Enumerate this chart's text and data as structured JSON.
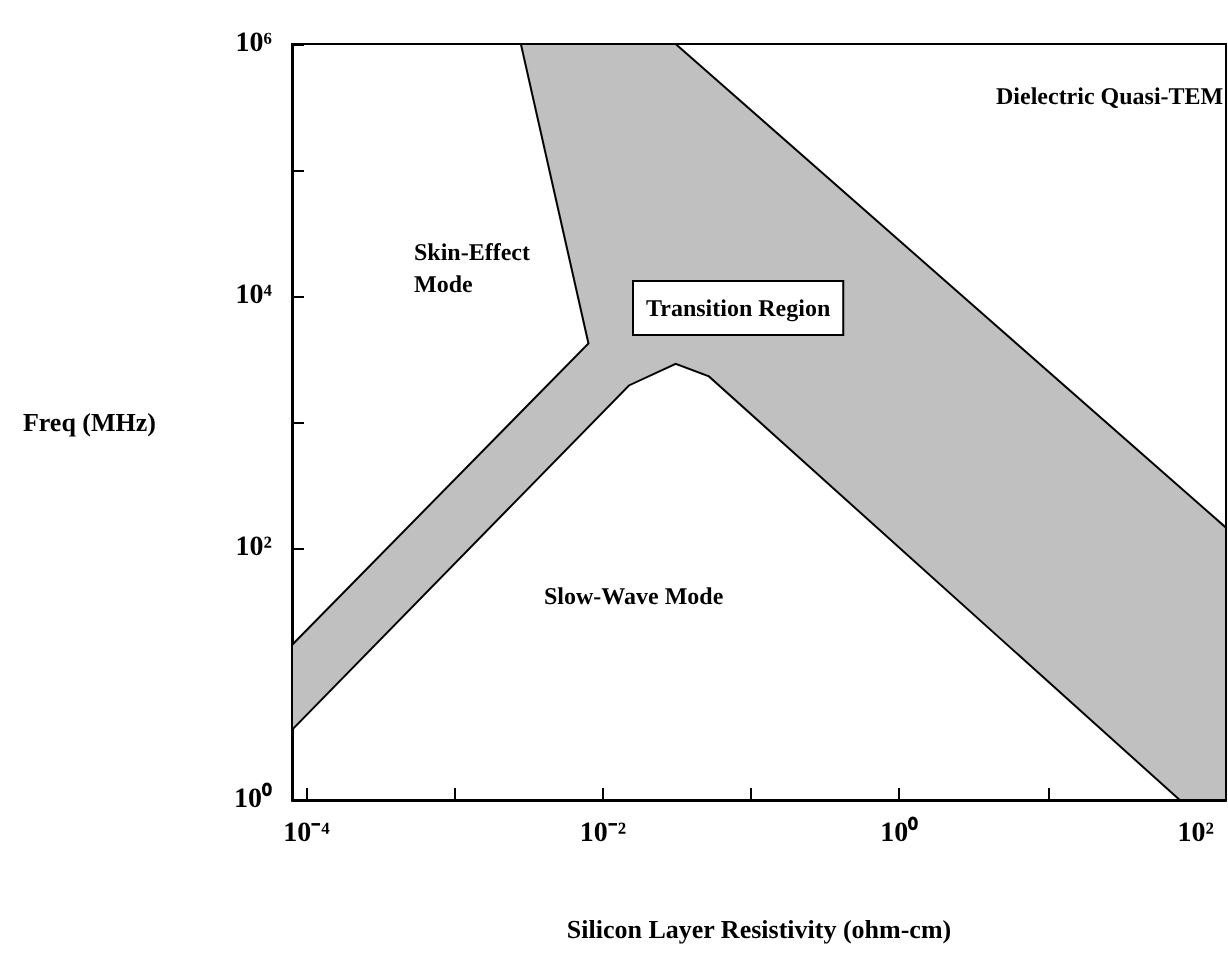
{
  "chart_data": {
    "type": "area",
    "xlabel": "Silicon Layer Resistivity (ohm-cm)",
    "ylabel": "Freq (MHz)",
    "log": "xy",
    "grid": false,
    "xlim": [
      8e-05,
      160
    ],
    "ylim": [
      1,
      1000000
    ],
    "xticks": [
      {
        "value": 0.0001,
        "label": "10⁻⁴"
      },
      {
        "value": 0.001,
        "label": null
      },
      {
        "value": 0.01,
        "label": "10⁻²"
      },
      {
        "value": 0.1,
        "label": null
      },
      {
        "value": 1,
        "label": "10⁰"
      },
      {
        "value": 10,
        "label": null
      },
      {
        "value": 100,
        "label": "10²"
      }
    ],
    "yticks": [
      {
        "value": 1,
        "label": "10⁰"
      },
      {
        "value": 10,
        "label": null
      },
      {
        "value": 100,
        "label": "10²"
      },
      {
        "value": 1000,
        "label": null
      },
      {
        "value": 10000,
        "label": "10⁴"
      },
      {
        "value": 100000,
        "label": null
      },
      {
        "value": 1000000,
        "label": "10⁶"
      }
    ],
    "series": [
      {
        "color": "#c0c0c0",
        "x": [
          8e-05,
          0.008,
          0.0028,
          0.031,
          160,
          160,
          78,
          0.052,
          0.031,
          0.015,
          8e-05
        ],
        "values": [
          17,
          4200,
          1000000,
          1000000,
          145,
          1,
          1,
          2300,
          2900,
          1950,
          3.6
        ]
      }
    ],
    "annotations": [
      "Dielectric Quasi-TEM",
      "Skin-Effect\nMode",
      "Transition Region",
      "Slow-Wave Mode"
    ]
  }
}
